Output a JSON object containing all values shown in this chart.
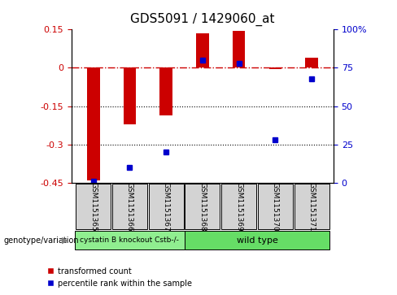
{
  "title": "GDS5091 / 1429060_at",
  "samples": [
    "GSM1151365",
    "GSM1151366",
    "GSM1151367",
    "GSM1151368",
    "GSM1151369",
    "GSM1151370",
    "GSM1151371"
  ],
  "red_values": [
    -0.44,
    -0.22,
    -0.185,
    0.135,
    0.145,
    -0.005,
    0.04
  ],
  "blue_values": [
    1,
    10,
    20,
    80,
    78,
    28,
    68
  ],
  "ylim_left": [
    -0.45,
    0.15
  ],
  "ylim_right": [
    0,
    100
  ],
  "yticks_left": [
    0.15,
    0,
    -0.15,
    -0.3,
    -0.45
  ],
  "yticks_right": [
    100,
    75,
    50,
    25,
    0
  ],
  "ytick_right_labels": [
    "100%",
    "75",
    "50",
    "25",
    "0"
  ],
  "group1_label": "cystatin B knockout Cstb-/-",
  "group2_label": "wild type",
  "genotype_label": "genotype/variation",
  "legend_red": "transformed count",
  "legend_blue": "percentile rank within the sample",
  "bar_color": "#cc0000",
  "dot_color": "#0000cc",
  "group1_color": "#90ee90",
  "group2_color": "#66dd66"
}
